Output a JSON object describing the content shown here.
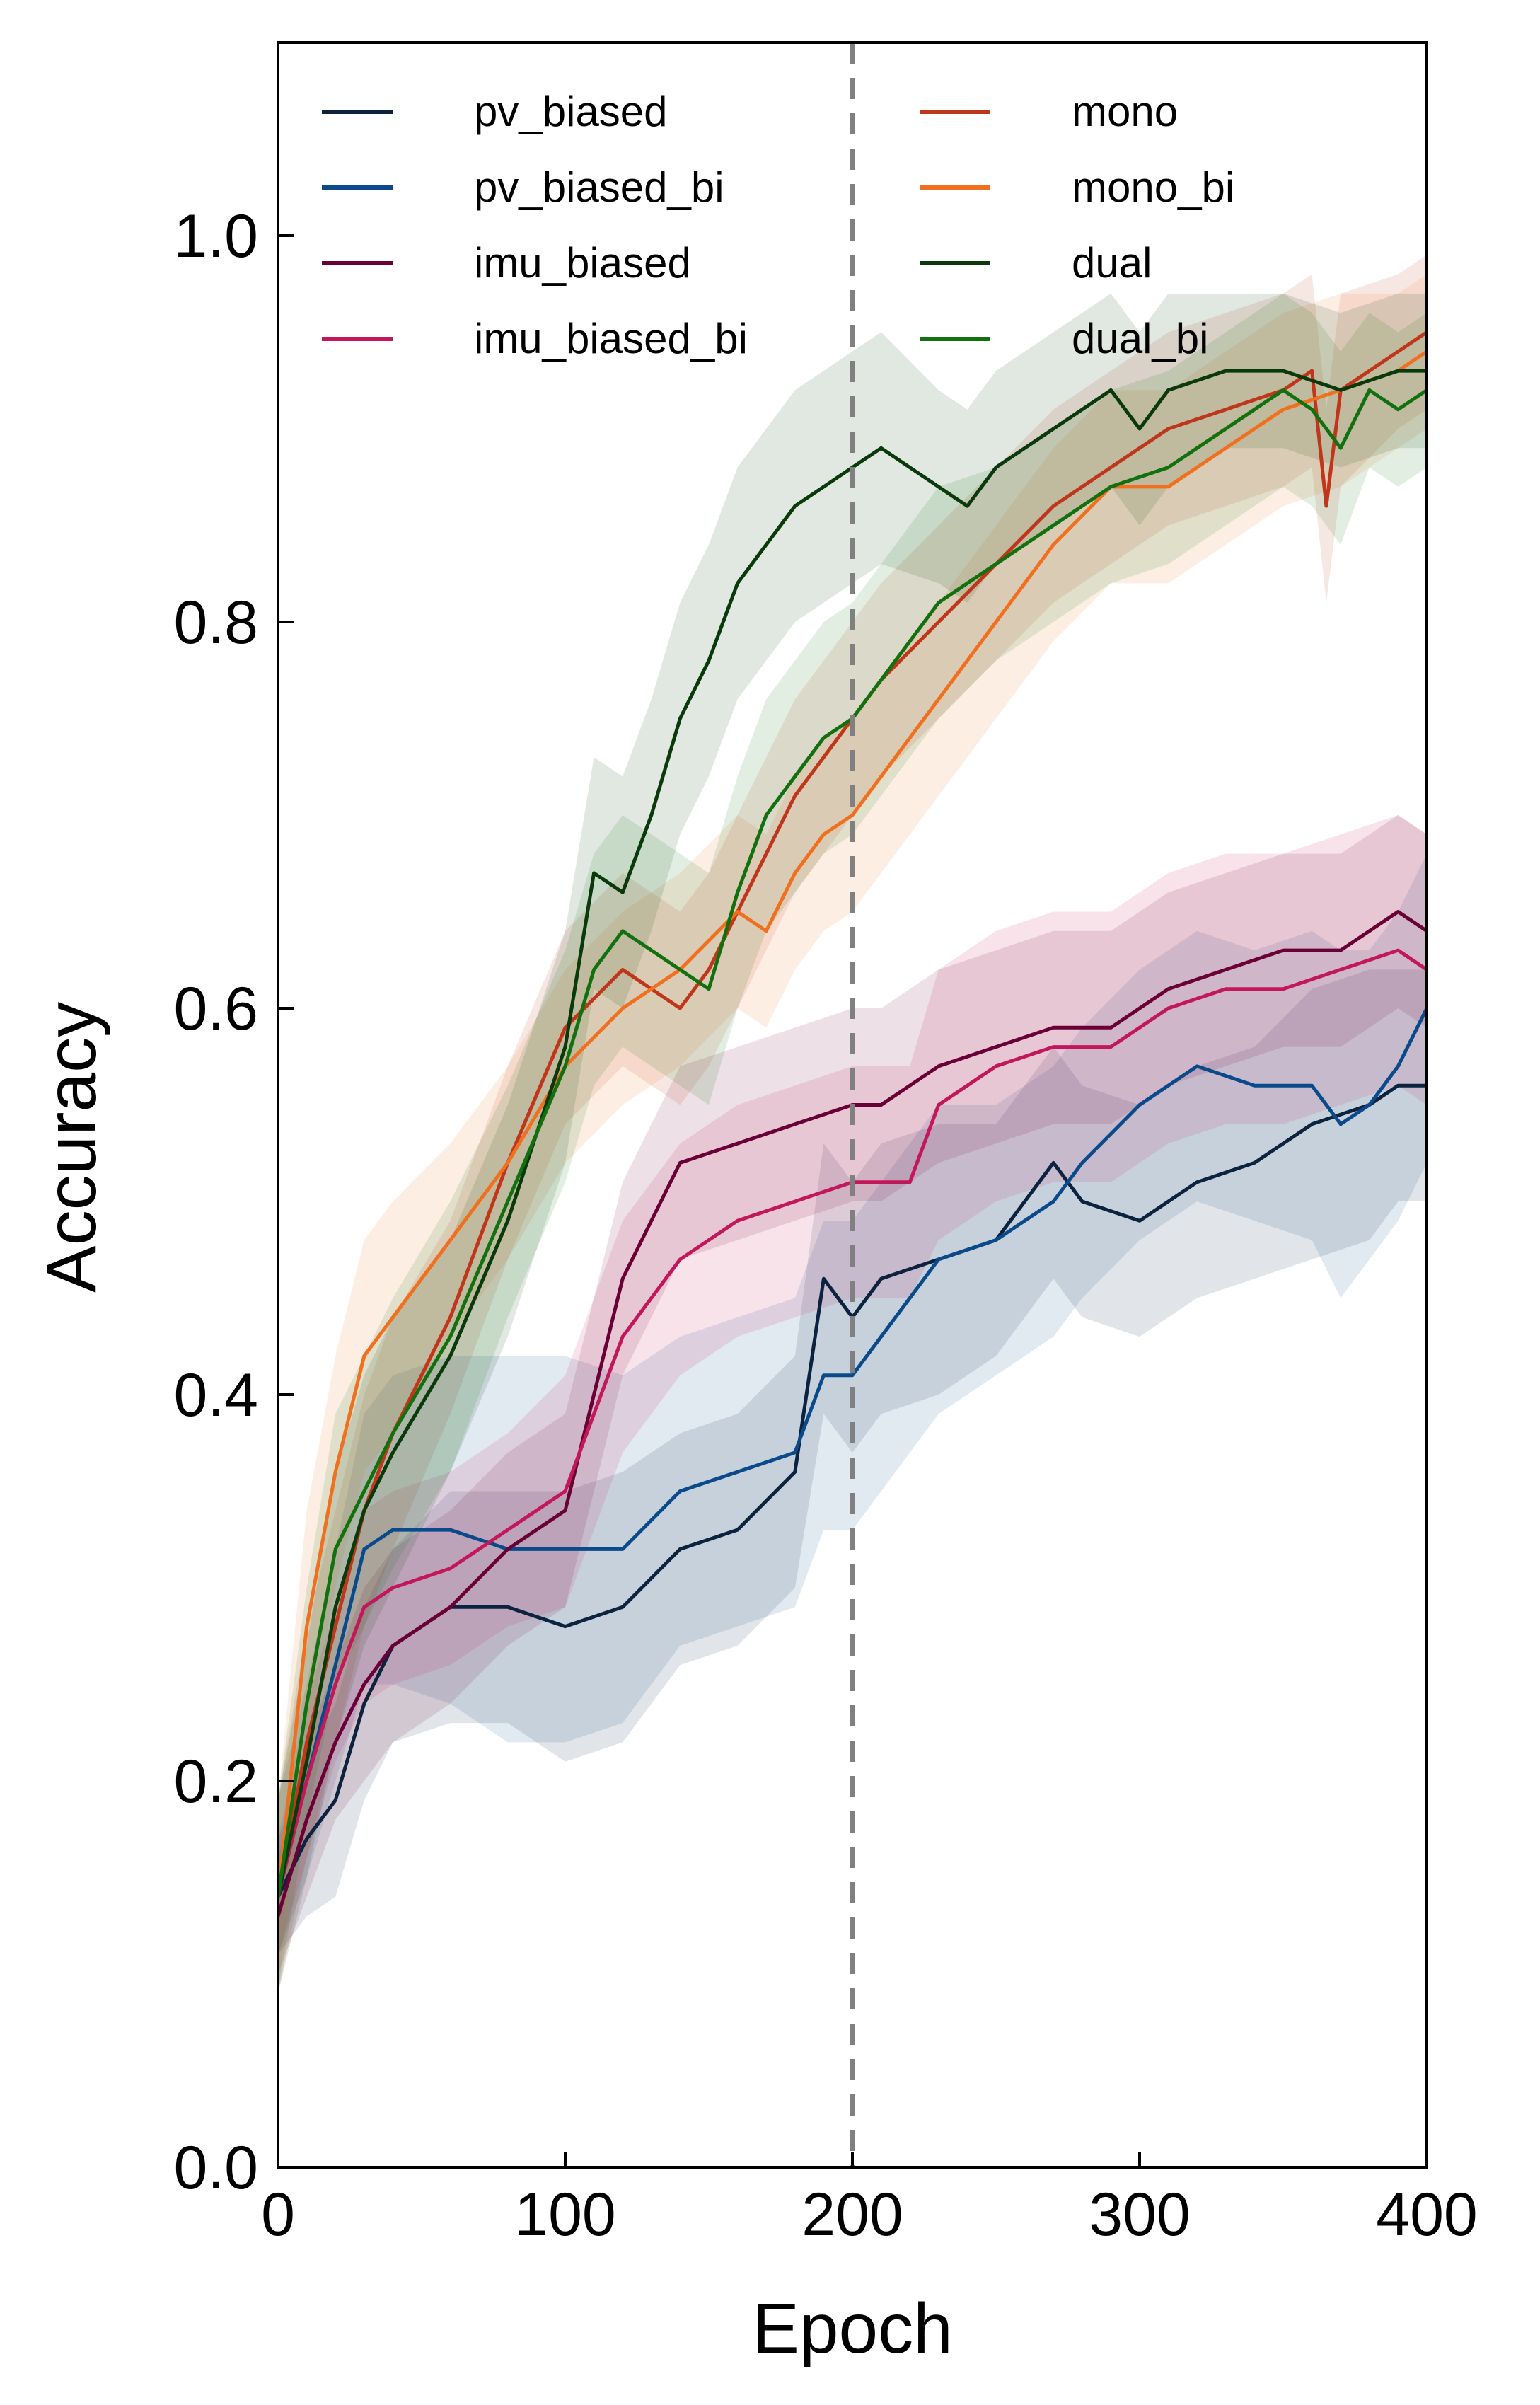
{
  "chart_data": {
    "type": "line",
    "title": "",
    "xlabel": "Epoch",
    "ylabel": "Accuracy",
    "xlim": [
      0,
      400
    ],
    "ylim": [
      0.0,
      1.1
    ],
    "xticks": [
      0,
      100,
      200,
      300,
      400
    ],
    "xtick_labels": [
      "0",
      "100",
      "200",
      "300",
      "400"
    ],
    "yticks": [
      0.0,
      0.2,
      0.4,
      0.6,
      0.8,
      1.0
    ],
    "ytick_labels": [
      "0.0",
      "0.2",
      "0.4",
      "0.6",
      "0.8",
      "1.0"
    ],
    "grid": false,
    "legend": {
      "position": "top-left",
      "columns": 2
    },
    "annotations": [
      {
        "type": "vline",
        "x": 200,
        "style": "dashed",
        "color": "#808080"
      }
    ],
    "series": [
      {
        "name": "pv_biased",
        "color": "#0c2340",
        "x": [
          0,
          10,
          20,
          30,
          40,
          60,
          80,
          100,
          120,
          140,
          160,
          180,
          190,
          200,
          210,
          230,
          250,
          270,
          280,
          300,
          320,
          340,
          360,
          380,
          390,
          400
        ],
        "y": [
          0.14,
          0.17,
          0.19,
          0.24,
          0.27,
          0.29,
          0.29,
          0.28,
          0.29,
          0.32,
          0.33,
          0.36,
          0.46,
          0.44,
          0.46,
          0.47,
          0.48,
          0.52,
          0.5,
          0.49,
          0.51,
          0.52,
          0.54,
          0.55,
          0.56,
          0.56
        ],
        "band": [
          0.03,
          0.04,
          0.05,
          0.05,
          0.05,
          0.06,
          0.06,
          0.07,
          0.07,
          0.06,
          0.06,
          0.06,
          0.07,
          0.07,
          0.07,
          0.07,
          0.06,
          0.06,
          0.06,
          0.06,
          0.06,
          0.06,
          0.07,
          0.07,
          0.06,
          0.06
        ]
      },
      {
        "name": "pv_biased_bi",
        "color": "#0b4a8a",
        "x": [
          0,
          10,
          20,
          30,
          40,
          60,
          80,
          100,
          120,
          140,
          160,
          180,
          190,
          200,
          210,
          230,
          250,
          270,
          280,
          300,
          320,
          340,
          360,
          370,
          380,
          390,
          400
        ],
        "y": [
          0.15,
          0.2,
          0.26,
          0.32,
          0.33,
          0.33,
          0.32,
          0.32,
          0.32,
          0.35,
          0.36,
          0.37,
          0.41,
          0.41,
          0.43,
          0.47,
          0.48,
          0.5,
          0.52,
          0.55,
          0.57,
          0.56,
          0.56,
          0.54,
          0.55,
          0.57,
          0.6
        ],
        "band": [
          0.04,
          0.05,
          0.06,
          0.07,
          0.08,
          0.09,
          0.1,
          0.1,
          0.09,
          0.08,
          0.08,
          0.08,
          0.08,
          0.08,
          0.08,
          0.08,
          0.07,
          0.07,
          0.07,
          0.07,
          0.07,
          0.07,
          0.08,
          0.09,
          0.08,
          0.08,
          0.08
        ]
      },
      {
        "name": "imu_biased",
        "color": "#6a0035",
        "x": [
          0,
          10,
          20,
          30,
          40,
          60,
          80,
          100,
          110,
          120,
          130,
          140,
          160,
          180,
          200,
          210,
          230,
          250,
          270,
          290,
          310,
          330,
          350,
          370,
          390,
          400
        ],
        "y": [
          0.13,
          0.18,
          0.22,
          0.25,
          0.27,
          0.29,
          0.32,
          0.34,
          0.4,
          0.46,
          0.49,
          0.52,
          0.53,
          0.54,
          0.55,
          0.55,
          0.57,
          0.58,
          0.59,
          0.59,
          0.61,
          0.62,
          0.63,
          0.63,
          0.65,
          0.64
        ],
        "band": [
          0.03,
          0.04,
          0.04,
          0.05,
          0.05,
          0.05,
          0.05,
          0.05,
          0.05,
          0.05,
          0.05,
          0.05,
          0.05,
          0.05,
          0.05,
          0.05,
          0.05,
          0.05,
          0.05,
          0.05,
          0.05,
          0.05,
          0.05,
          0.05,
          0.05,
          0.05
        ]
      },
      {
        "name": "imu_biased_bi",
        "color": "#c2185b",
        "x": [
          0,
          10,
          20,
          30,
          40,
          60,
          80,
          100,
          110,
          120,
          140,
          160,
          180,
          200,
          220,
          230,
          250,
          270,
          290,
          310,
          330,
          350,
          370,
          390,
          400
        ],
        "y": [
          0.14,
          0.2,
          0.25,
          0.29,
          0.3,
          0.31,
          0.33,
          0.35,
          0.39,
          0.43,
          0.47,
          0.49,
          0.5,
          0.51,
          0.51,
          0.55,
          0.57,
          0.58,
          0.58,
          0.6,
          0.61,
          0.61,
          0.62,
          0.63,
          0.62
        ],
        "band": [
          0.03,
          0.04,
          0.04,
          0.05,
          0.05,
          0.05,
          0.05,
          0.06,
          0.06,
          0.06,
          0.06,
          0.06,
          0.06,
          0.06,
          0.06,
          0.07,
          0.07,
          0.07,
          0.07,
          0.07,
          0.07,
          0.07,
          0.07,
          0.07,
          0.07
        ]
      },
      {
        "name": "mono",
        "color": "#c0361a",
        "x": [
          0,
          10,
          20,
          30,
          40,
          60,
          80,
          100,
          120,
          130,
          140,
          150,
          160,
          170,
          180,
          190,
          200,
          210,
          230,
          250,
          270,
          290,
          310,
          330,
          350,
          360,
          365,
          370,
          390,
          400
        ],
        "y": [
          0.14,
          0.22,
          0.28,
          0.34,
          0.38,
          0.44,
          0.52,
          0.59,
          0.62,
          0.61,
          0.6,
          0.62,
          0.65,
          0.68,
          0.71,
          0.73,
          0.75,
          0.77,
          0.8,
          0.83,
          0.86,
          0.88,
          0.9,
          0.91,
          0.92,
          0.93,
          0.86,
          0.92,
          0.94,
          0.95
        ],
        "band": [
          0.05,
          0.06,
          0.06,
          0.06,
          0.06,
          0.05,
          0.05,
          0.05,
          0.05,
          0.05,
          0.05,
          0.05,
          0.05,
          0.05,
          0.05,
          0.05,
          0.05,
          0.05,
          0.05,
          0.05,
          0.05,
          0.05,
          0.05,
          0.05,
          0.05,
          0.05,
          0.05,
          0.05,
          0.04,
          0.04
        ]
      },
      {
        "name": "mono_bi",
        "color": "#f07020",
        "x": [
          0,
          10,
          20,
          30,
          40,
          60,
          80,
          100,
          120,
          140,
          160,
          170,
          180,
          190,
          200,
          210,
          230,
          250,
          270,
          290,
          310,
          330,
          350,
          370,
          390,
          400
        ],
        "y": [
          0.14,
          0.28,
          0.36,
          0.42,
          0.44,
          0.48,
          0.52,
          0.57,
          0.6,
          0.62,
          0.65,
          0.64,
          0.67,
          0.69,
          0.7,
          0.72,
          0.76,
          0.8,
          0.84,
          0.87,
          0.87,
          0.89,
          0.91,
          0.92,
          0.93,
          0.94
        ],
        "band": [
          0.05,
          0.06,
          0.06,
          0.06,
          0.06,
          0.05,
          0.05,
          0.05,
          0.05,
          0.05,
          0.05,
          0.05,
          0.05,
          0.05,
          0.05,
          0.05,
          0.05,
          0.05,
          0.05,
          0.05,
          0.05,
          0.05,
          0.05,
          0.05,
          0.04,
          0.04
        ]
      },
      {
        "name": "dual",
        "color": "#0a3a0a",
        "x": [
          0,
          10,
          20,
          30,
          40,
          60,
          80,
          100,
          110,
          120,
          130,
          140,
          150,
          160,
          170,
          180,
          190,
          200,
          210,
          230,
          240,
          250,
          270,
          290,
          300,
          310,
          330,
          350,
          370,
          390,
          400
        ],
        "y": [
          0.14,
          0.21,
          0.29,
          0.34,
          0.37,
          0.42,
          0.49,
          0.58,
          0.67,
          0.66,
          0.7,
          0.75,
          0.78,
          0.82,
          0.84,
          0.86,
          0.87,
          0.88,
          0.89,
          0.87,
          0.86,
          0.88,
          0.9,
          0.92,
          0.9,
          0.92,
          0.93,
          0.93,
          0.92,
          0.93,
          0.93
        ],
        "band": [
          0.05,
          0.06,
          0.07,
          0.07,
          0.07,
          0.06,
          0.06,
          0.06,
          0.06,
          0.06,
          0.06,
          0.06,
          0.06,
          0.06,
          0.06,
          0.06,
          0.06,
          0.06,
          0.06,
          0.05,
          0.05,
          0.05,
          0.05,
          0.05,
          0.05,
          0.05,
          0.04,
          0.04,
          0.04,
          0.04,
          0.04
        ]
      },
      {
        "name": "dual_bi",
        "color": "#13700f",
        "x": [
          0,
          10,
          20,
          30,
          40,
          60,
          80,
          100,
          110,
          120,
          130,
          140,
          150,
          160,
          170,
          180,
          190,
          200,
          210,
          230,
          250,
          270,
          290,
          310,
          330,
          350,
          360,
          370,
          380,
          390,
          400
        ],
        "y": [
          0.14,
          0.24,
          0.32,
          0.35,
          0.38,
          0.43,
          0.5,
          0.57,
          0.62,
          0.64,
          0.63,
          0.62,
          0.61,
          0.66,
          0.7,
          0.72,
          0.74,
          0.75,
          0.77,
          0.81,
          0.83,
          0.85,
          0.87,
          0.88,
          0.9,
          0.92,
          0.91,
          0.89,
          0.92,
          0.91,
          0.92
        ],
        "band": [
          0.05,
          0.06,
          0.07,
          0.07,
          0.07,
          0.07,
          0.06,
          0.06,
          0.06,
          0.06,
          0.06,
          0.06,
          0.06,
          0.06,
          0.06,
          0.06,
          0.06,
          0.06,
          0.06,
          0.06,
          0.05,
          0.05,
          0.05,
          0.05,
          0.05,
          0.05,
          0.05,
          0.05,
          0.04,
          0.04,
          0.04
        ]
      }
    ]
  }
}
